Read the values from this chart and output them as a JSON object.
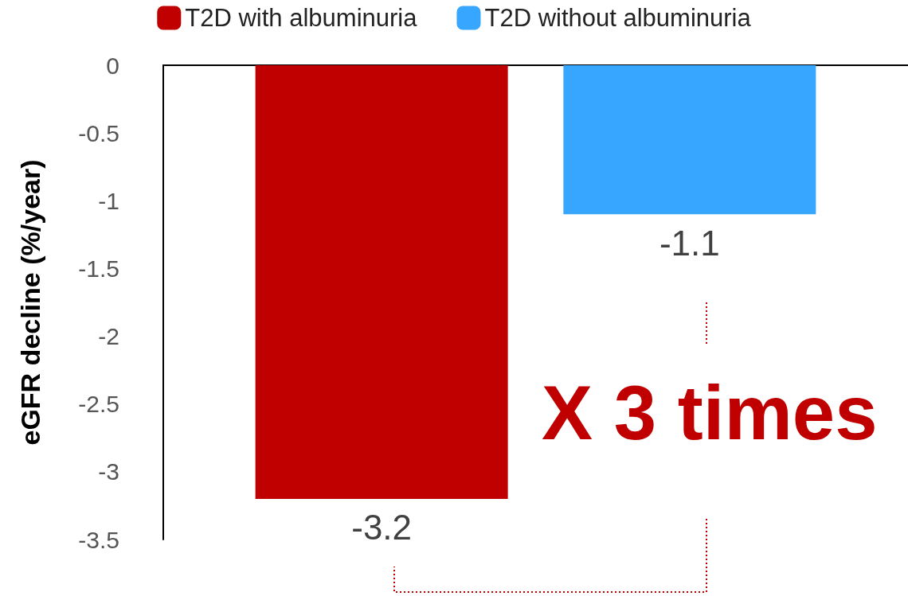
{
  "chart_data": {
    "type": "bar",
    "ylabel": "eGFR decline (%/year)",
    "categories": [
      null
    ],
    "series": [
      {
        "name": "T2D with albuminuria",
        "color": "#c00000",
        "values": [
          -3.2
        ]
      },
      {
        "name": "T2D without albuminuria",
        "color": "#36a6ff",
        "values": [
          -1.1
        ]
      }
    ],
    "ylim": [
      -3.5,
      0
    ],
    "yticks": [
      -3.5,
      -3,
      -2.5,
      -2,
      -1.5,
      -1,
      -0.5,
      0
    ],
    "data_labels": true,
    "legend": "top",
    "grid": false,
    "annotations": [
      "X 3 times"
    ]
  }
}
